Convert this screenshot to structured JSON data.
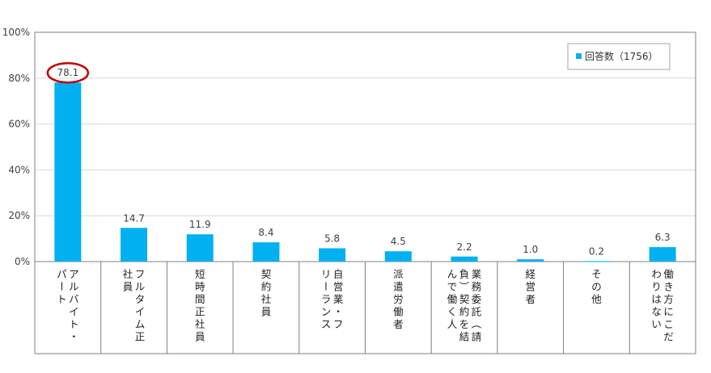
{
  "chart_data": {
    "type": "bar",
    "categories": [
      [
        "アルバイト・",
        "パート"
      ],
      [
        "フルタイム正",
        "社員"
      ],
      [
        "短時間正社員"
      ],
      [
        "契約社員"
      ],
      [
        "自営業・フ",
        "リーランス"
      ],
      [
        "派遣労働者"
      ],
      [
        "業務委託（請",
        "負）契約を結",
        "んで働く人"
      ],
      [
        "経営者"
      ],
      [
        "その他"
      ],
      [
        "働き方にこだ",
        "わりはない"
      ]
    ],
    "series": [
      {
        "name": "回答数（1756）",
        "values": [
          78.1,
          14.7,
          11.9,
          8.4,
          5.8,
          4.5,
          2.2,
          1.0,
          0.2,
          6.3
        ]
      }
    ],
    "value_labels": [
      "78.1",
      "14.7",
      "11.9",
      "8.4",
      "5.8",
      "4.5",
      "2.2",
      "1.0",
      "0.2",
      "6.3"
    ],
    "y_ticks": [
      "0%",
      "20%",
      "40%",
      "60%",
      "80%",
      "100%"
    ],
    "ylim": [
      0,
      100
    ],
    "grid": true,
    "legend_position": "top-right",
    "highlighted_category_index": 0,
    "colors": {
      "bar": "#00b0f0",
      "highlight": "#c00000",
      "grid": "#d9d9d9",
      "axis": "#7f7f7f"
    }
  }
}
